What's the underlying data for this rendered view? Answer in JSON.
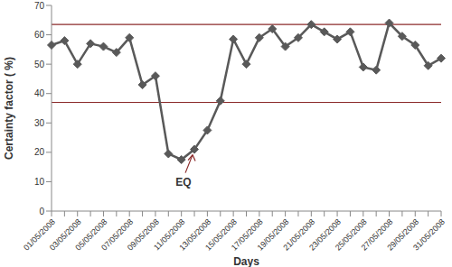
{
  "chart_data": {
    "type": "line",
    "x_label": "Days",
    "y_label": "Certainty factor ( %)",
    "categories": [
      "01/05/2008",
      null,
      "03/05/2008",
      null,
      "05/05/2008",
      null,
      "07/05/2008",
      null,
      "09/05/2008",
      null,
      "11/05/2008",
      null,
      "13/05/2008",
      null,
      "15/05/2008",
      null,
      "17/05/2008",
      null,
      "19/05/2008",
      null,
      "21/05/2008",
      null,
      "23/05/2008",
      null,
      "25/05/2008",
      null,
      "27/05/2008",
      null,
      "29/05/2008",
      null,
      "31/05/2008"
    ],
    "values": [
      56.5,
      58,
      50,
      57,
      56,
      54,
      59,
      43,
      46,
      19.5,
      17.5,
      21,
      27.5,
      37.5,
      58.5,
      50,
      59,
      62,
      56,
      59,
      63.5,
      61,
      58.5,
      61,
      49,
      48,
      64,
      59.5,
      56.5,
      49.5,
      52
    ],
    "color": "#595959",
    "marker": "diamond",
    "reference_lines": [
      63.5,
      37
    ],
    "annotations": [
      {
        "text": "EQ"
      }
    ],
    "ylim": [
      0,
      70
    ],
    "yticks": [
      0,
      10,
      20,
      30,
      40,
      50,
      60,
      70
    ],
    "grid": false
  }
}
